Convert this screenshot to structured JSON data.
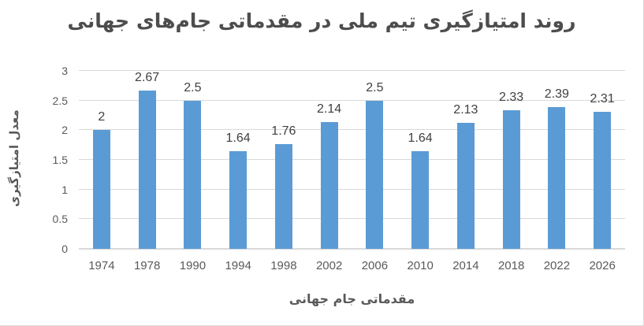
{
  "chart": {
    "title": "روند امتیازگیری تیم ملی در مقدماتی جام‌های جهانی",
    "xlabel": "مقدماتی جام جهانی",
    "ylabel": "معدل امتیازگیری"
  },
  "colors": {
    "bar": "#5b9bd5",
    "gridline": "#d9d9d9",
    "title_text": "#4d4d4d",
    "axis_text": "#595959",
    "data_label_text": "#404040"
  },
  "chart_data": {
    "type": "bar",
    "title": "روند امتیازگیری تیم ملی در مقدماتی جام‌های جهانی",
    "xlabel": "مقدماتی جام جهانی",
    "ylabel": "معدل امتیازگیری",
    "categories": [
      "1974",
      "1978",
      "1990",
      "1994",
      "1998",
      "2002",
      "2006",
      "2010",
      "2014",
      "2018",
      "2022",
      "2026"
    ],
    "values": [
      2,
      2.67,
      2.5,
      1.64,
      1.76,
      2.14,
      2.5,
      1.64,
      2.13,
      2.33,
      2.39,
      2.31
    ],
    "value_labels": [
      "2",
      "2.67",
      "2.5",
      "1.64",
      "1.76",
      "2.14",
      "2.5",
      "1.64",
      "2.13",
      "2.33",
      "2.39",
      "2.31"
    ],
    "ylim": [
      0,
      3
    ],
    "ytick_labels": [
      "0",
      "0.5",
      "1",
      "1.5",
      "2",
      "2.5",
      "3"
    ],
    "grid": "horizontal",
    "legend_position": "none"
  }
}
